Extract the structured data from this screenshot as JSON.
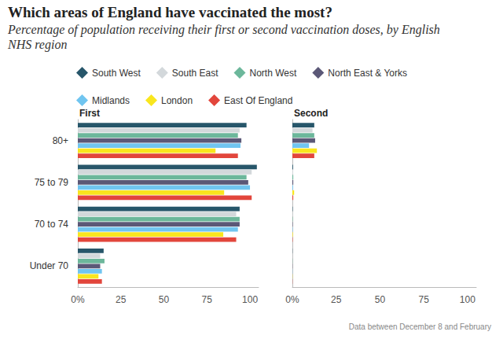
{
  "title": "Which areas of England have vaccinated the most?",
  "subtitle": "Percentage of population receiving their first or second vaccination doses, by English NHS region",
  "source": "Data between December 8 and February",
  "chart_data": [
    {
      "type": "bar",
      "title": "First",
      "orientation": "horizontal",
      "legend": "top",
      "grid": false,
      "categories": [
        "80+",
        "75 to 79",
        "70 to 74",
        "Under 70"
      ],
      "xlim": [
        0,
        105
      ],
      "xticks": [
        {
          "value": 0,
          "label": "0%"
        },
        25,
        50,
        75,
        100
      ],
      "series": [
        {
          "name": "South West",
          "color": "#27566a",
          "values": [
            98,
            104,
            94,
            15
          ]
        },
        {
          "name": "South East",
          "color": "#d3d8db",
          "values": [
            94,
            101,
            92,
            13
          ]
        },
        {
          "name": "North West",
          "color": "#6cb79b",
          "values": [
            93,
            98,
            94,
            15.5
          ]
        },
        {
          "name": "North East & Yorks",
          "color": "#5b5877",
          "values": [
            95,
            99,
            94,
            13
          ]
        },
        {
          "name": "Midlands",
          "color": "#70c5f0",
          "values": [
            94.5,
            100,
            93,
            14
          ]
        },
        {
          "name": "London",
          "color": "#f9e61e",
          "values": [
            80,
            85,
            84.5,
            12
          ]
        },
        {
          "name": "East Of England",
          "color": "#e2463c",
          "values": [
            93,
            101,
            92,
            14
          ]
        }
      ]
    },
    {
      "type": "bar",
      "title": "Second",
      "orientation": "horizontal",
      "grid": false,
      "tick_labels": "x",
      "categories": [
        "80+",
        "75 to 79",
        "70 to 74",
        "Under 70"
      ],
      "xlim": [
        0,
        105
      ],
      "xticks": [
        {
          "value": 0,
          "label": "0%"
        },
        25,
        50,
        75,
        100
      ],
      "series": [
        {
          "name": "South West",
          "color": "#27566a",
          "values": [
            12.5,
            0.4,
            0.2,
            0.1
          ]
        },
        {
          "name": "South East",
          "color": "#d3d8db",
          "values": [
            11.5,
            0.4,
            0.2,
            0.1
          ]
        },
        {
          "name": "North West",
          "color": "#6cb79b",
          "values": [
            12.5,
            0.5,
            0.2,
            0.1
          ]
        },
        {
          "name": "North East & Yorks",
          "color": "#5b5877",
          "values": [
            13,
            0.5,
            0.2,
            0.1
          ]
        },
        {
          "name": "Midlands",
          "color": "#70c5f0",
          "values": [
            9.5,
            0.4,
            0.2,
            0.1
          ]
        },
        {
          "name": "London",
          "color": "#f9e61e",
          "values": [
            14,
            1,
            0.3,
            0.1
          ]
        },
        {
          "name": "East Of England",
          "color": "#e2463c",
          "values": [
            12.5,
            0.5,
            0.2,
            0.1
          ]
        }
      ]
    }
  ]
}
